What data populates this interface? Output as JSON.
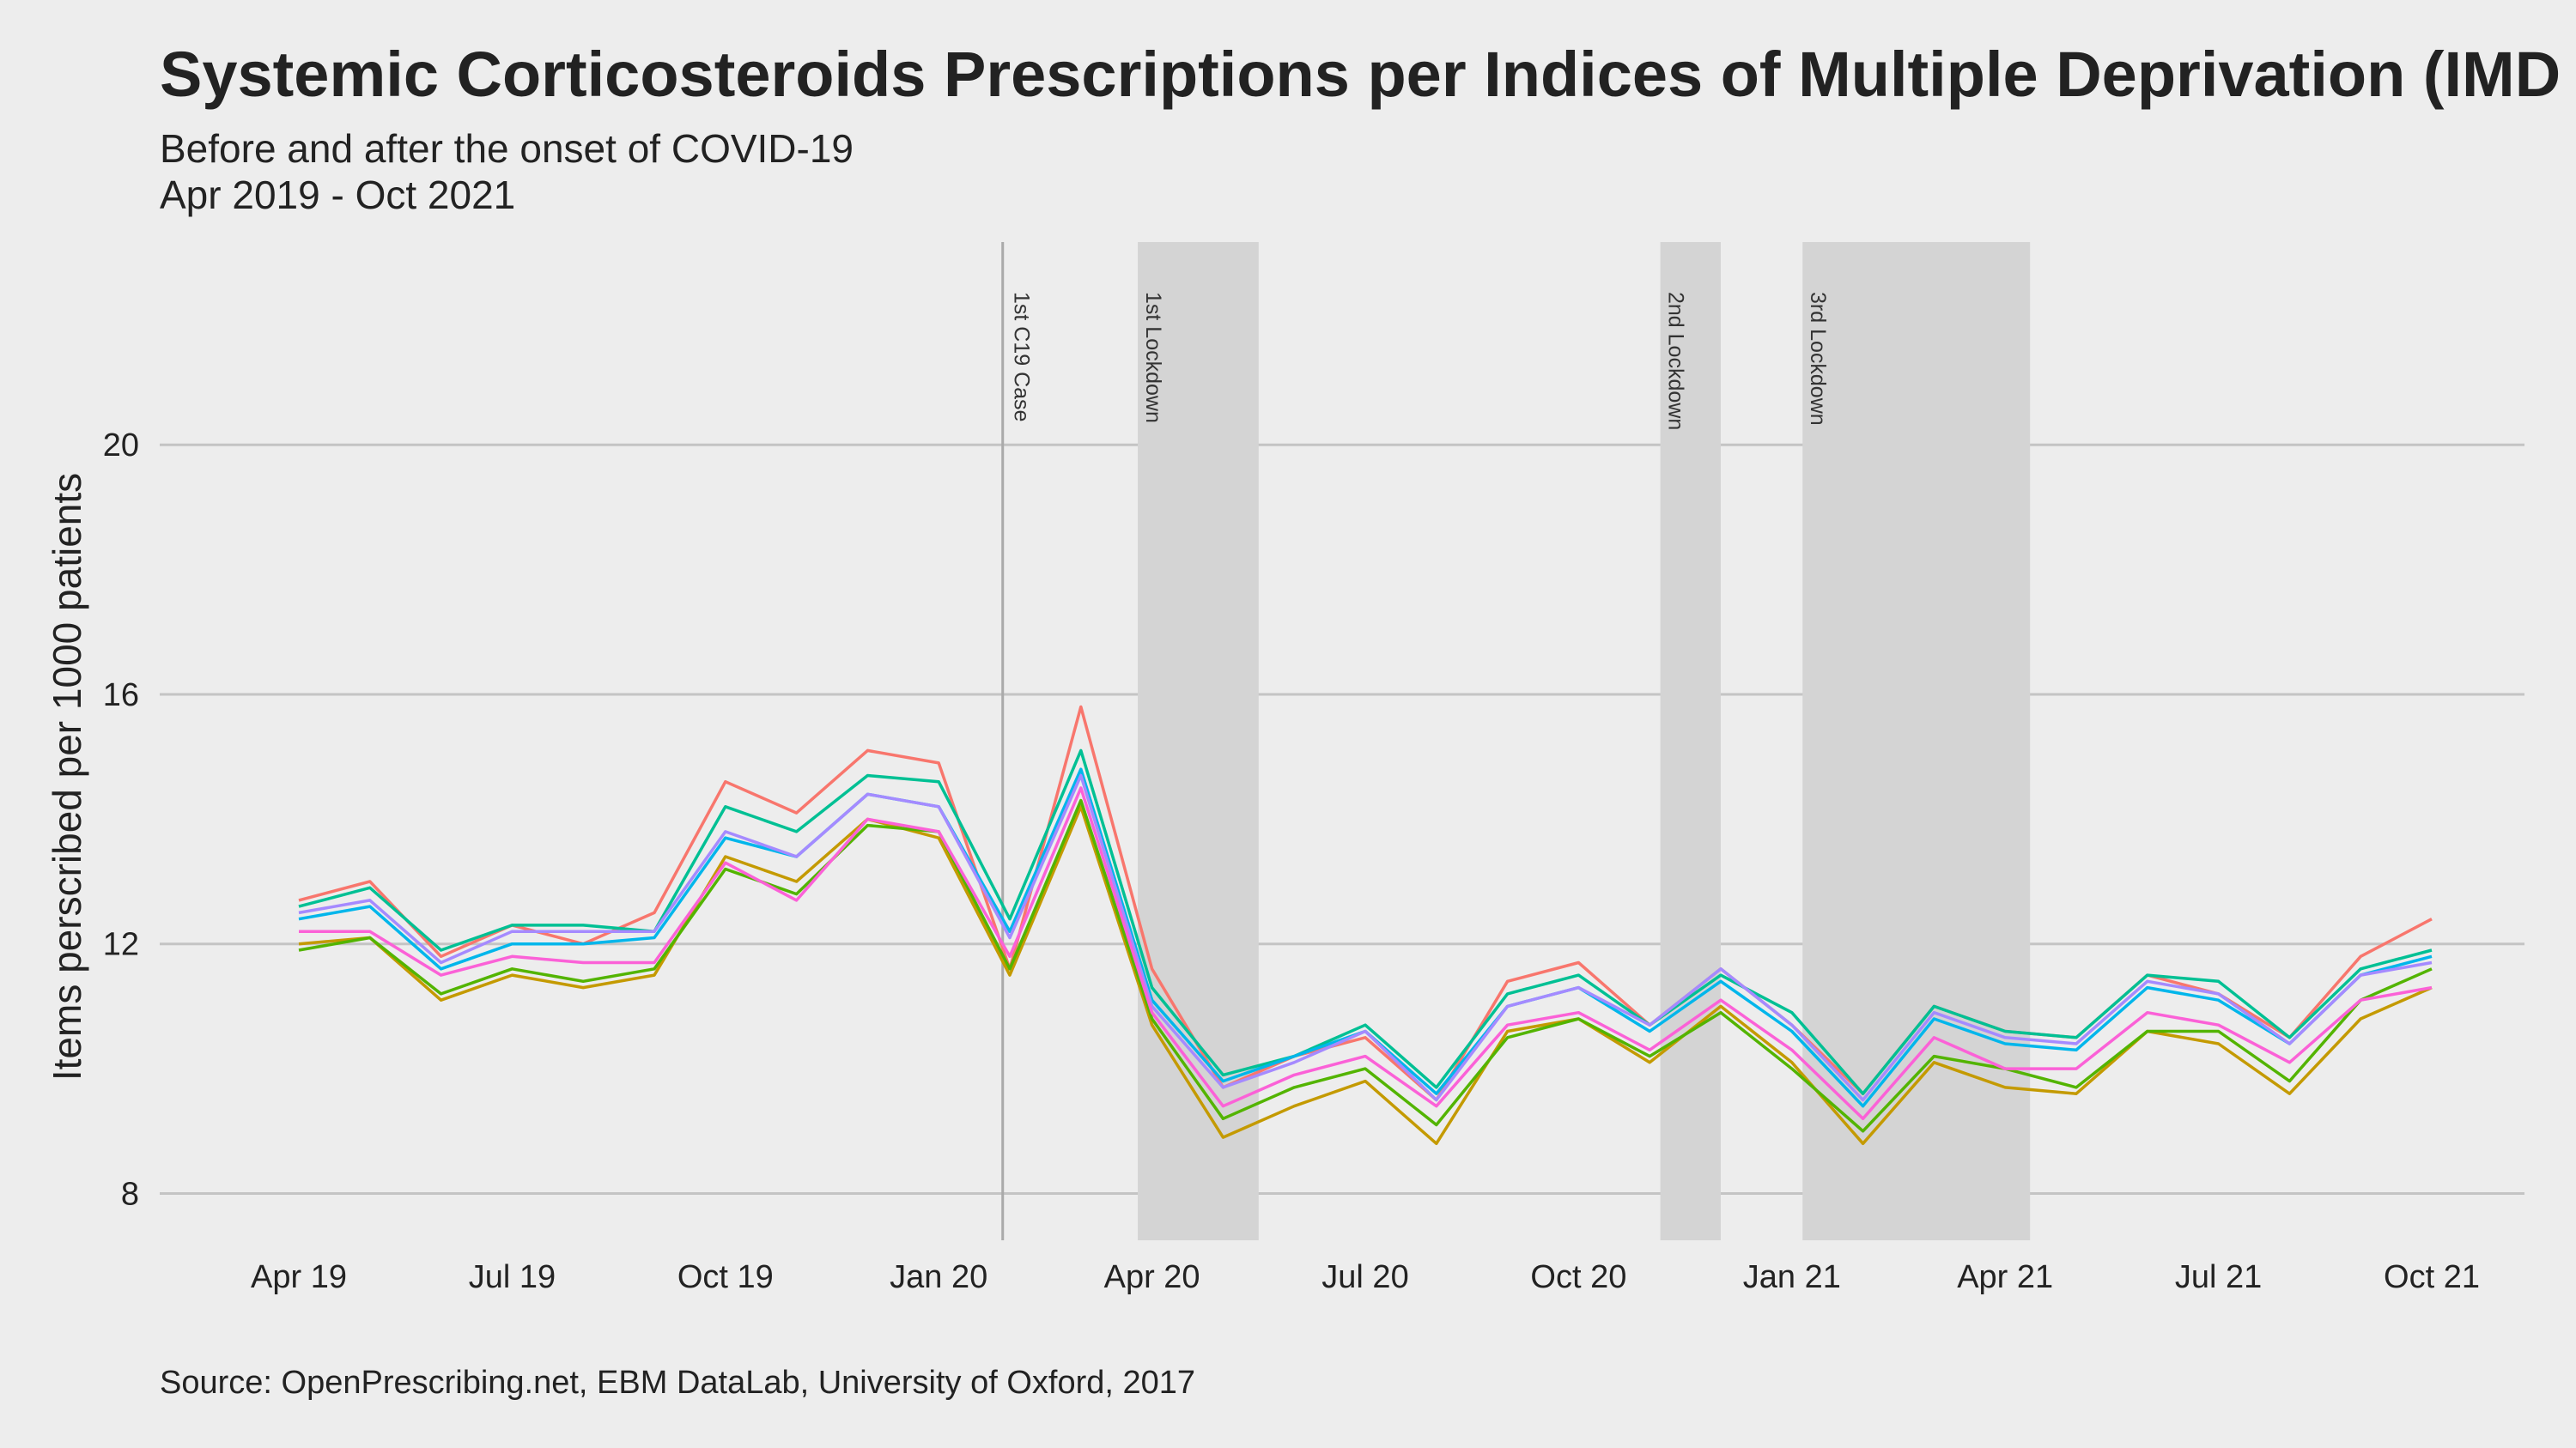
{
  "chart_data": {
    "type": "line",
    "title": "Systemic Corticosteroids Prescriptions per Indices of Multiple Deprivation (IMD",
    "subtitle": "Before and after the onset of COVID-19",
    "subtitle2": "Apr 2019 - Oct 2021",
    "xlabel": "",
    "ylabel": "Items perscribed per 1000 patients",
    "caption": "Source: OpenPrescribing.net, EBM DataLab, University of Oxford, 2017",
    "ylim": [
      7.25,
      23.25
    ],
    "yticks": [
      8,
      12,
      16,
      20
    ],
    "x": [
      "2019-04",
      "2019-05",
      "2019-06",
      "2019-07",
      "2019-08",
      "2019-09",
      "2019-10",
      "2019-11",
      "2019-12",
      "2020-01",
      "2020-02",
      "2020-03",
      "2020-04",
      "2020-05",
      "2020-06",
      "2020-07",
      "2020-08",
      "2020-09",
      "2020-10",
      "2020-11",
      "2020-12",
      "2021-01",
      "2021-02",
      "2021-03",
      "2021-04",
      "2021-05",
      "2021-06",
      "2021-07",
      "2021-08",
      "2021-09",
      "2021-10"
    ],
    "xticks": [
      {
        "label": "Apr 19",
        "index": 0
      },
      {
        "label": "Jul 19",
        "index": 3
      },
      {
        "label": "Oct 19",
        "index": 6
      },
      {
        "label": "Jan 20",
        "index": 9
      },
      {
        "label": "Apr 20",
        "index": 12
      },
      {
        "label": "Jul 20",
        "index": 15
      },
      {
        "label": "Oct 20",
        "index": 18
      },
      {
        "label": "Jan 21",
        "index": 21
      },
      {
        "label": "Apr 21",
        "index": 24
      },
      {
        "label": "Jul 21",
        "index": 27
      },
      {
        "label": "Oct 21",
        "index": 30
      }
    ],
    "events": [
      {
        "label": "1st C19 Case",
        "type": "line",
        "at": 9.9
      }
    ],
    "shaded_periods": [
      {
        "label": "1st Lockdown",
        "start": 11.8,
        "end": 13.5
      },
      {
        "label": "2nd Lockdown",
        "start": 19.15,
        "end": 20.0
      },
      {
        "label": "3rd Lockdown",
        "start": 21.15,
        "end": 24.35
      }
    ],
    "series": [
      {
        "name": "series-1",
        "color": "#F8766D",
        "values": [
          12.7,
          13.0,
          11.8,
          12.3,
          12.0,
          12.5,
          14.6,
          14.1,
          15.1,
          14.9,
          11.6,
          15.8,
          11.6,
          9.7,
          10.2,
          10.5,
          9.5,
          11.4,
          11.7,
          10.7,
          11.6,
          10.7,
          9.6,
          11.0,
          10.6,
          10.5,
          11.5,
          11.2,
          10.5,
          11.8,
          12.4
        ]
      },
      {
        "name": "series-2",
        "color": "#C49A00",
        "values": [
          12.0,
          12.1,
          11.1,
          11.5,
          11.3,
          11.5,
          13.4,
          13.0,
          14.0,
          13.7,
          11.5,
          14.2,
          10.7,
          8.9,
          9.4,
          9.8,
          8.8,
          10.6,
          10.8,
          10.1,
          11.0,
          10.1,
          8.8,
          10.1,
          9.7,
          9.6,
          10.6,
          10.4,
          9.6,
          10.8,
          11.3
        ]
      },
      {
        "name": "series-3",
        "color": "#53B400",
        "values": [
          11.9,
          12.1,
          11.2,
          11.6,
          11.4,
          11.6,
          13.2,
          12.8,
          13.9,
          13.8,
          11.6,
          14.3,
          10.8,
          9.2,
          9.7,
          10.0,
          9.1,
          10.5,
          10.8,
          10.2,
          10.9,
          10.0,
          9.0,
          10.2,
          10.0,
          9.7,
          10.6,
          10.6,
          9.8,
          11.1,
          11.6
        ]
      },
      {
        "name": "series-4",
        "color": "#00C094",
        "values": [
          12.6,
          12.9,
          11.9,
          12.3,
          12.3,
          12.2,
          14.2,
          13.8,
          14.7,
          14.6,
          12.4,
          15.1,
          11.3,
          9.9,
          10.2,
          10.7,
          9.7,
          11.2,
          11.5,
          10.7,
          11.5,
          10.9,
          9.6,
          11.0,
          10.6,
          10.5,
          11.5,
          11.4,
          10.5,
          11.6,
          11.9
        ]
      },
      {
        "name": "series-5",
        "color": "#00B6EB",
        "values": [
          12.4,
          12.6,
          11.6,
          12.0,
          12.0,
          12.1,
          13.7,
          13.4,
          14.4,
          14.2,
          12.2,
          14.8,
          11.1,
          9.8,
          10.2,
          10.6,
          9.6,
          11.0,
          11.3,
          10.6,
          11.4,
          10.6,
          9.4,
          10.8,
          10.4,
          10.3,
          11.3,
          11.1,
          10.4,
          11.5,
          11.8
        ]
      },
      {
        "name": "series-6",
        "color": "#A58AFF",
        "values": [
          12.5,
          12.7,
          11.7,
          12.2,
          12.2,
          12.2,
          13.8,
          13.4,
          14.4,
          14.2,
          12.1,
          14.7,
          11.0,
          9.7,
          10.1,
          10.6,
          9.5,
          11.0,
          11.3,
          10.7,
          11.6,
          10.7,
          9.5,
          10.9,
          10.5,
          10.4,
          11.4,
          11.2,
          10.4,
          11.5,
          11.7
        ]
      },
      {
        "name": "series-7",
        "color": "#FB61D7",
        "values": [
          12.2,
          12.2,
          11.5,
          11.8,
          11.7,
          11.7,
          13.3,
          12.7,
          14.0,
          13.8,
          11.8,
          14.5,
          10.9,
          9.4,
          9.9,
          10.2,
          9.4,
          10.7,
          10.9,
          10.3,
          11.1,
          10.3,
          9.2,
          10.5,
          10.0,
          10.0,
          10.9,
          10.7,
          10.1,
          11.1,
          11.3
        ]
      }
    ]
  }
}
